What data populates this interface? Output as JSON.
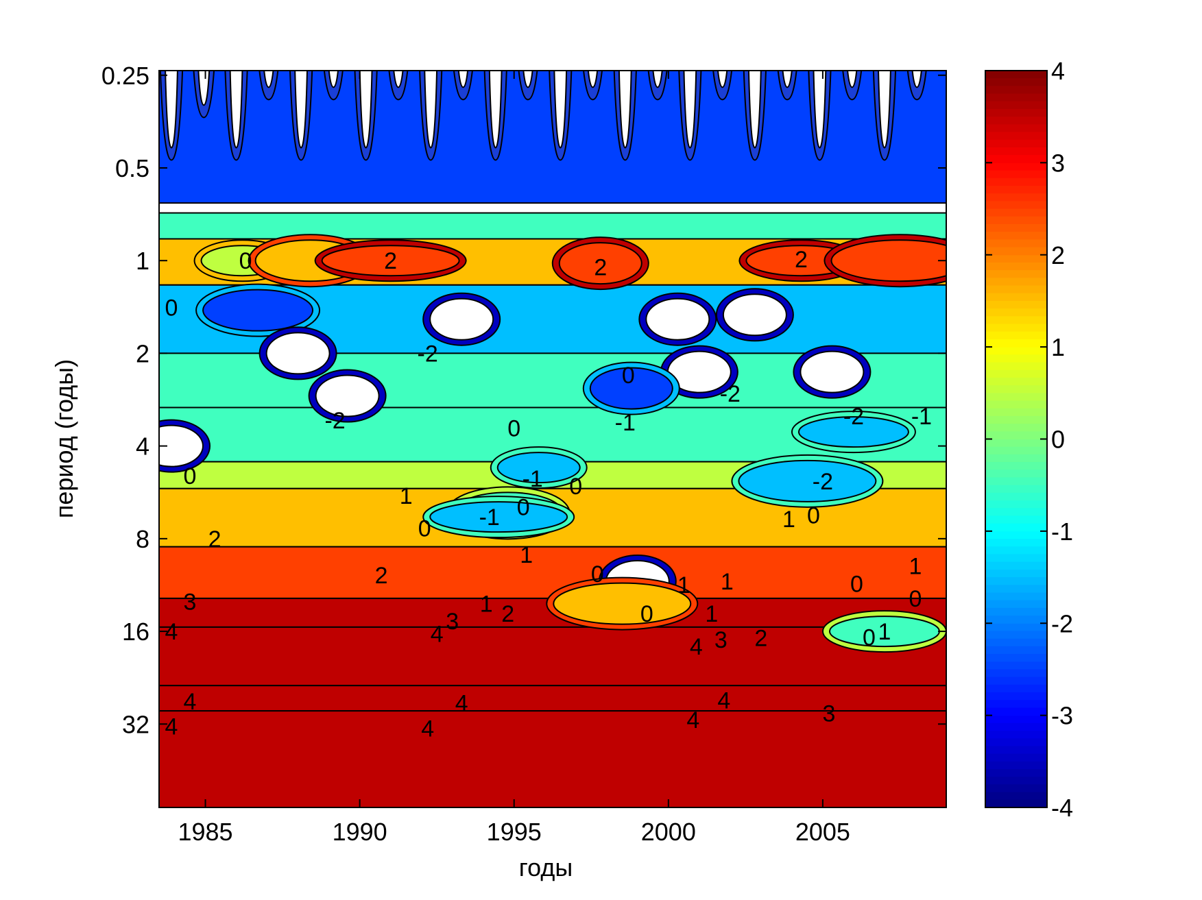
{
  "chart_data": {
    "type": "heatmap",
    "subtype": "wavelet-power-filled-contour",
    "title": "",
    "xlabel": "годы",
    "ylabel": "период (годы)",
    "xlim": [
      1983.5,
      2009
    ],
    "ylim_log2_period": [
      -2.05,
      5.9
    ],
    "y_scale": "log2",
    "x_ticks": [
      1985,
      1990,
      1995,
      2000,
      2005
    ],
    "x_tick_labels": [
      "1985",
      "1990",
      "1995",
      "2000",
      "2005"
    ],
    "y_ticks": [
      0.25,
      0.5,
      1,
      2,
      4,
      8,
      16,
      32
    ],
    "y_tick_labels": [
      "0.25",
      "0.5",
      "1",
      "2",
      "4",
      "8",
      "16",
      "32"
    ],
    "colorbar": {
      "min": -4,
      "max": 4,
      "ticks": [
        4,
        3,
        2,
        1,
        0,
        -1,
        -2,
        -3,
        -4
      ],
      "tick_labels": [
        "4",
        "3",
        "2",
        "1",
        "0",
        "-1",
        "-2",
        "-3",
        "-4"
      ],
      "colormap": "jet"
    },
    "levels": [
      -4,
      -3,
      -2,
      -1,
      0,
      1,
      2,
      3,
      4
    ],
    "below_min_color": "#ffffff",
    "bands": [
      {
        "period_from": 0.17,
        "period_to": 0.65,
        "value": -3,
        "note": "blue band with white holes"
      },
      {
        "period_from": 0.7,
        "period_to": 0.85,
        "value": -1
      },
      {
        "period_from": 0.85,
        "period_to": 1.2,
        "value": 1
      },
      {
        "period_from": 1.2,
        "period_to": 2.0,
        "value": -2
      },
      {
        "period_from": 2.0,
        "period_to": 3.0,
        "value": -1
      },
      {
        "period_from": 3.0,
        "period_to": 4.5,
        "value": -1
      },
      {
        "period_from": 4.5,
        "period_to": 5.5,
        "value": 0
      },
      {
        "period_from": 5.5,
        "period_to": 8.5,
        "value": 1
      },
      {
        "period_from": 8.5,
        "period_to": 12.5,
        "value": 2
      },
      {
        "period_from": 12.5,
        "period_to": 15.5,
        "value": 3
      },
      {
        "period_from": 15.5,
        "period_to": 24,
        "value": 4
      },
      {
        "period_from": 24,
        "period_to": 29,
        "value": 3
      },
      {
        "period_from": 29,
        "period_to": 60,
        "value": 4
      }
    ],
    "features": [
      {
        "x": 1986.2,
        "period": 1.0,
        "value": 0
      },
      {
        "x": 1988.4,
        "period": 1.0,
        "value": 1
      },
      {
        "x": 1991.0,
        "period": 1.0,
        "value": 2
      },
      {
        "x": 1997.8,
        "period": 1.02,
        "value": 2
      },
      {
        "x": 2004.3,
        "period": 1.0,
        "value": 2
      },
      {
        "x": 2007.5,
        "period": 1.0,
        "value": 2
      },
      {
        "x": 1993.3,
        "period": 1.55,
        "value": -4.5
      },
      {
        "x": 1986.7,
        "period": 1.45,
        "value": -3
      },
      {
        "x": 1988.0,
        "period": 2.0,
        "value": -4.5
      },
      {
        "x": 1989.6,
        "period": 2.75,
        "value": -4.5
      },
      {
        "x": 2000.3,
        "period": 1.55,
        "value": -4.5
      },
      {
        "x": 2002.8,
        "period": 1.5,
        "value": -4.5
      },
      {
        "x": 2001.0,
        "period": 2.3,
        "value": -4.5
      },
      {
        "x": 2005.3,
        "period": 2.3,
        "value": -4.5
      },
      {
        "x": 1983.9,
        "period": 4.0,
        "value": -4.5
      },
      {
        "x": 1998.8,
        "period": 2.6,
        "value": -3
      },
      {
        "x": 2006.0,
        "period": 3.6,
        "value": -2
      },
      {
        "x": 2004.5,
        "period": 5.2,
        "value": -2
      },
      {
        "x": 1995.8,
        "period": 4.7,
        "value": -2
      },
      {
        "x": 1994.8,
        "period": 6.6,
        "value": -1
      },
      {
        "x": 1994.5,
        "period": 6.8,
        "value": -2
      },
      {
        "x": 1999.0,
        "period": 11.0,
        "value": -4.5
      },
      {
        "x": 2007.0,
        "period": 16.0,
        "value": -1
      },
      {
        "x": 1998.5,
        "period": 13.0,
        "value": 1
      }
    ],
    "contour_labels": [
      {
        "text": "0",
        "x": 1986.3,
        "period": 1.0
      },
      {
        "text": "2",
        "x": 1991.0,
        "period": 1.0
      },
      {
        "text": "2",
        "x": 1997.8,
        "period": 1.05
      },
      {
        "text": "2",
        "x": 2004.3,
        "period": 0.99
      },
      {
        "text": "0",
        "x": 1983.9,
        "period": 1.42
      },
      {
        "text": "-2",
        "x": 1992.2,
        "period": 2.0
      },
      {
        "text": "-2",
        "x": 1989.2,
        "period": 3.3
      },
      {
        "text": "0",
        "x": 1998.7,
        "period": 2.35
      },
      {
        "text": "-2",
        "x": 2002.0,
        "period": 2.7
      },
      {
        "text": "-2",
        "x": 2006.0,
        "period": 3.2
      },
      {
        "text": "-1",
        "x": 2008.2,
        "period": 3.2
      },
      {
        "text": "-1",
        "x": 1998.6,
        "period": 3.35
      },
      {
        "text": "0",
        "x": 1995.0,
        "period": 3.5
      },
      {
        "text": "-1",
        "x": 1995.6,
        "period": 5.1
      },
      {
        "text": "0",
        "x": 1997.0,
        "period": 5.4
      },
      {
        "text": "-2",
        "x": 2005.0,
        "period": 5.2
      },
      {
        "text": "0",
        "x": 1984.5,
        "period": 5.0
      },
      {
        "text": "1",
        "x": 1991.5,
        "period": 5.8
      },
      {
        "text": "0",
        "x": 1995.3,
        "period": 6.3
      },
      {
        "text": "-1",
        "x": 1994.2,
        "period": 6.8
      },
      {
        "text": "0",
        "x": 1992.1,
        "period": 7.4
      },
      {
        "text": "1",
        "x": 2003.9,
        "period": 6.9
      },
      {
        "text": "0",
        "x": 2004.7,
        "period": 6.7
      },
      {
        "text": "2",
        "x": 1985.3,
        "period": 8.0
      },
      {
        "text": "1",
        "x": 1995.4,
        "period": 9.0
      },
      {
        "text": "2",
        "x": 1990.7,
        "period": 10.5
      },
      {
        "text": "0",
        "x": 1997.7,
        "period": 10.4
      },
      {
        "text": "1",
        "x": 2001.9,
        "period": 11.0
      },
      {
        "text": "0",
        "x": 2006.1,
        "period": 11.2
      },
      {
        "text": "1",
        "x": 2008.0,
        "period": 9.8
      },
      {
        "text": "0",
        "x": 2008.0,
        "period": 12.5
      },
      {
        "text": "1",
        "x": 2000.5,
        "period": 11.3
      },
      {
        "text": "3",
        "x": 1984.5,
        "period": 12.8
      },
      {
        "text": "3",
        "x": 1993.0,
        "period": 14.8
      },
      {
        "text": "2",
        "x": 1994.8,
        "period": 14.0
      },
      {
        "text": "1",
        "x": 1994.1,
        "period": 13.0
      },
      {
        "text": "0",
        "x": 1999.3,
        "period": 14.0
      },
      {
        "text": "1",
        "x": 2001.4,
        "period": 14.0
      },
      {
        "text": "4",
        "x": 1983.9,
        "period": 16.0
      },
      {
        "text": "4",
        "x": 1992.5,
        "period": 16.3
      },
      {
        "text": "4",
        "x": 2000.9,
        "period": 17.9
      },
      {
        "text": "3",
        "x": 2001.7,
        "period": 17.0
      },
      {
        "text": "2",
        "x": 2003.0,
        "period": 16.8
      },
      {
        "text": "1",
        "x": 2007.0,
        "period": 16.0
      },
      {
        "text": "0",
        "x": 2006.5,
        "period": 16.7
      },
      {
        "text": "4",
        "x": 1984.5,
        "period": 27.0
      },
      {
        "text": "4",
        "x": 1993.3,
        "period": 27.3
      },
      {
        "text": "4",
        "x": 2001.8,
        "period": 26.8
      },
      {
        "text": "3",
        "x": 2005.2,
        "period": 29.5
      },
      {
        "text": "4",
        "x": 1983.9,
        "period": 32.5
      },
      {
        "text": "4",
        "x": 1992.2,
        "period": 33.0
      },
      {
        "text": "4",
        "x": 2000.8,
        "period": 31.0
      }
    ]
  }
}
